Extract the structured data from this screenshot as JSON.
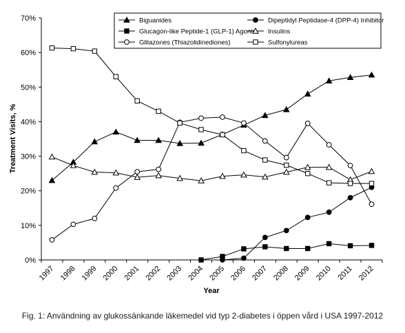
{
  "caption": "Fig. 1: Användning av glukossänkande läkemedel vid typ 2-diabetes i öppen vård i USA 1997-2012",
  "chart_data": {
    "type": "line",
    "title": "",
    "xlabel": "Year",
    "ylabel": "Treatment Visits, %",
    "x": [
      1997,
      1998,
      1999,
      2000,
      2001,
      2002,
      2003,
      2004,
      2005,
      2006,
      2007,
      2008,
      2009,
      2010,
      2011,
      2012
    ],
    "ylim": [
      0,
      70
    ],
    "yticks": [
      0,
      10,
      20,
      30,
      40,
      50,
      60,
      70
    ],
    "ytick_suffix": "%",
    "grid": false,
    "legend_position": "top-right",
    "series": [
      {
        "name": "Biguanides",
        "marker": "triangle-filled",
        "values": [
          23.0,
          28.3,
          34.2,
          37.0,
          34.6,
          34.6,
          33.7,
          33.8,
          36.3,
          39.0,
          41.8,
          43.5,
          48.0,
          51.8,
          52.8,
          53.5
        ]
      },
      {
        "name": "Dipeptidyl Peptidase-4 (DPP-4) Inhibitor",
        "marker": "circle-filled",
        "values": [
          null,
          null,
          null,
          null,
          null,
          null,
          null,
          null,
          0.0,
          0.5,
          6.5,
          8.5,
          12.3,
          13.8,
          18.0,
          21.0
        ]
      },
      {
        "name": "Glucagon-like Peptide-1 (GLP-1) Agonist",
        "marker": "square-filled",
        "values": [
          null,
          null,
          null,
          null,
          null,
          null,
          null,
          0.0,
          1.0,
          3.2,
          3.8,
          3.3,
          3.3,
          4.7,
          4.1,
          4.2
        ]
      },
      {
        "name": "Insulins",
        "marker": "triangle-open",
        "values": [
          29.8,
          27.3,
          25.4,
          25.2,
          23.9,
          24.4,
          23.6,
          22.9,
          24.2,
          24.6,
          24.0,
          25.4,
          26.8,
          26.8,
          23.2,
          25.6
        ]
      },
      {
        "name": "Glitazones (Thiazolidinediones)",
        "marker": "circle-open",
        "values": [
          5.8,
          10.3,
          12.0,
          20.8,
          25.5,
          26.2,
          39.8,
          41.0,
          41.3,
          39.6,
          34.4,
          29.6,
          39.5,
          33.3,
          27.3,
          16.1
        ]
      },
      {
        "name": "Sulfonylureas",
        "marker": "square-open",
        "values": [
          61.3,
          61.1,
          60.4,
          53.0,
          46.0,
          43.0,
          39.6,
          37.7,
          36.2,
          31.6,
          28.9,
          27.4,
          25.0,
          22.3,
          22.1,
          22.1
        ]
      }
    ]
  }
}
